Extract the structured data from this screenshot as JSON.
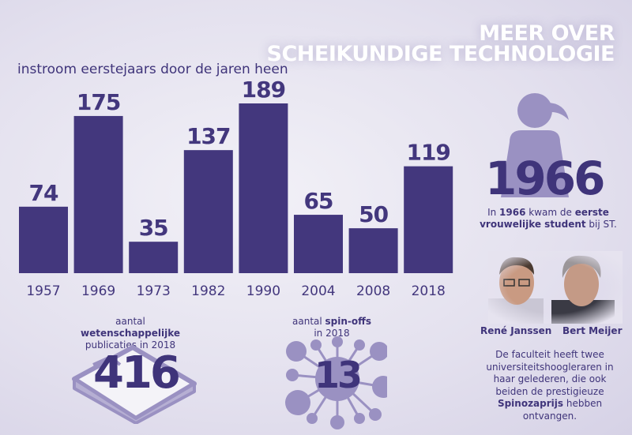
{
  "header": {
    "title_line1": "MEER OVER",
    "title_line2": "SCHEIKUNDIGE TECHNOLOGIE"
  },
  "chart_data": {
    "type": "bar",
    "title": "instroom eerstejaars door de jaren heen",
    "categories": [
      "1957",
      "1969",
      "1973",
      "1982",
      "1990",
      "2004",
      "2008",
      "2018"
    ],
    "values": [
      74,
      175,
      35,
      137,
      189,
      65,
      50,
      119
    ],
    "ylim": [
      0,
      189
    ],
    "grid": false,
    "bar_color": "#43377d"
  },
  "female": {
    "year": "1966",
    "text_pre": "In ",
    "text_year": "1966",
    "text_mid": " kwam de ",
    "text_bold1": "eerste",
    "text_bold2": "vrouwelijke student",
    "text_post": " bij ST.",
    "icon": "female-person-icon"
  },
  "professors": {
    "names": [
      "René Janssen",
      "Bert Meijer"
    ],
    "text_line1": "De faculteit heeft twee",
    "text_line2": "universiteitshoogleraren in",
    "text_line3": "haar gelederen, die ook",
    "text_line4": "beiden de prestigieuze",
    "text_bold": "Spinozaprijs",
    "text_line5_post": " hebben",
    "text_line6": "ontvangen."
  },
  "publications": {
    "label_pre": "aantal ",
    "label_bold": "wetenschappelijke",
    "label_line2": "publicaties in 2018",
    "value": "416",
    "icon": "paper-stack-icon"
  },
  "spinoffs": {
    "label_pre": "aantal ",
    "label_bold": "spin-offs",
    "label_line2": "in 2018",
    "value": "13",
    "icon": "network-icon"
  },
  "colors": {
    "primary": "#43377d",
    "light": "#9a91c2",
    "bg": "#e6e3ef"
  }
}
